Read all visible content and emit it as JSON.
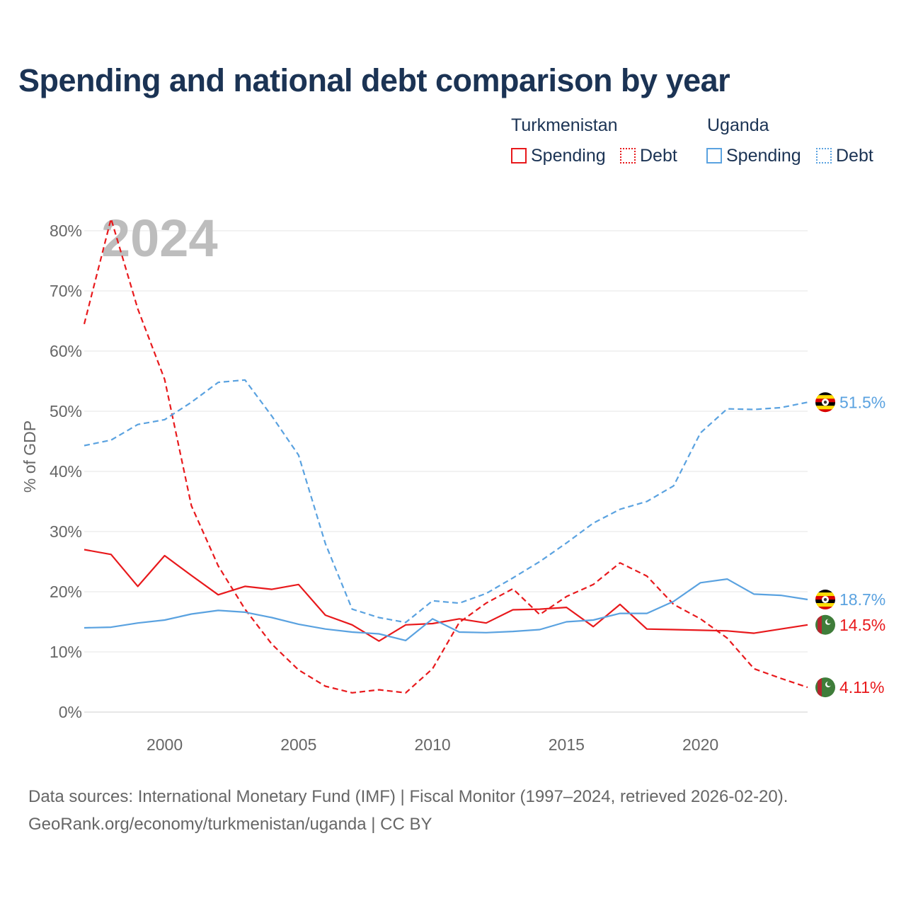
{
  "title": "Spending and national debt comparison by year",
  "legend": {
    "countries": [
      {
        "name": "Turkmenistan",
        "spending_label": "Spending",
        "debt_label": "Debt",
        "color": "#e8191c"
      },
      {
        "name": "Uganda",
        "spending_label": "Spending",
        "debt_label": "Debt",
        "color": "#5aa2e0"
      }
    ]
  },
  "footer": {
    "line1": "Data sources: International Monetary Fund (IMF) | Fiscal Monitor (1997–2024, retrieved 2026-02-20).",
    "line2": "GeoRank.org/economy/turkmenistan/uganda | CC BY"
  },
  "chart_data": {
    "type": "line",
    "title": "Spending and national debt comparison by year",
    "watermark_year": "2024",
    "ylabel": "% of GDP",
    "xlabel": "",
    "xlim": [
      1997,
      2024
    ],
    "ylim": [
      0,
      80
    ],
    "yticks": [
      0,
      10,
      20,
      30,
      40,
      50,
      60,
      70,
      80
    ],
    "ytick_labels": [
      "0%",
      "10%",
      "20%",
      "30%",
      "40%",
      "50%",
      "60%",
      "70%",
      "80%"
    ],
    "xticks": [
      2000,
      2005,
      2010,
      2015,
      2020
    ],
    "xtick_labels": [
      "2000",
      "2005",
      "2010",
      "2015",
      "2020"
    ],
    "grid": true,
    "x": [
      1997,
      1998,
      1999,
      2000,
      2001,
      2002,
      2003,
      2004,
      2005,
      2006,
      2007,
      2008,
      2009,
      2010,
      2011,
      2012,
      2013,
      2014,
      2015,
      2016,
      2017,
      2018,
      2019,
      2020,
      2021,
      2022,
      2023,
      2024
    ],
    "series": [
      {
        "name": "Turkmenistan Spending",
        "country": "Turkmenistan",
        "kind": "Spending",
        "dash": "solid",
        "color": "#e8191c",
        "values": [
          27.0,
          26.2,
          20.9,
          26.0,
          22.7,
          19.5,
          20.9,
          20.4,
          21.2,
          16.1,
          14.5,
          11.8,
          14.5,
          14.7,
          15.5,
          14.8,
          17.0,
          17.1,
          17.4,
          14.2,
          17.9,
          13.8,
          13.7,
          13.6,
          13.5,
          13.1,
          13.8,
          14.5
        ],
        "end_label": "14.5%"
      },
      {
        "name": "Turkmenistan Debt",
        "country": "Turkmenistan",
        "kind": "Debt",
        "dash": "dashed",
        "color": "#e8191c",
        "values": [
          64.5,
          82.0,
          67.0,
          55.3,
          34.3,
          24.3,
          17.1,
          11.3,
          7.0,
          4.3,
          3.2,
          3.7,
          3.2,
          7.2,
          14.9,
          18.1,
          20.5,
          16.2,
          19.2,
          21.2,
          24.8,
          22.6,
          17.9,
          15.5,
          12.3,
          7.2,
          5.6,
          4.11
        ],
        "end_label": "4.11%"
      },
      {
        "name": "Uganda Spending",
        "country": "Uganda",
        "kind": "Spending",
        "dash": "solid",
        "color": "#5aa2e0",
        "values": [
          14.0,
          14.1,
          14.8,
          15.3,
          16.3,
          16.9,
          16.6,
          15.7,
          14.6,
          13.8,
          13.3,
          13.0,
          11.9,
          15.5,
          13.3,
          13.2,
          13.4,
          13.7,
          15.0,
          15.3,
          16.4,
          16.4,
          18.4,
          21.5,
          22.1,
          19.6,
          19.4,
          18.7
        ],
        "end_label": "18.7%"
      },
      {
        "name": "Uganda Debt",
        "country": "Uganda",
        "kind": "Debt",
        "dash": "dashed",
        "color": "#5aa2e0",
        "values": [
          44.3,
          45.2,
          47.8,
          48.6,
          51.5,
          54.8,
          55.2,
          49.2,
          42.7,
          28.0,
          17.1,
          15.7,
          14.9,
          18.5,
          18.1,
          19.7,
          22.3,
          25.0,
          28.1,
          31.4,
          33.7,
          35.0,
          37.6,
          46.4,
          50.4,
          50.3,
          50.6,
          51.5
        ],
        "end_label": "51.5%"
      }
    ]
  }
}
